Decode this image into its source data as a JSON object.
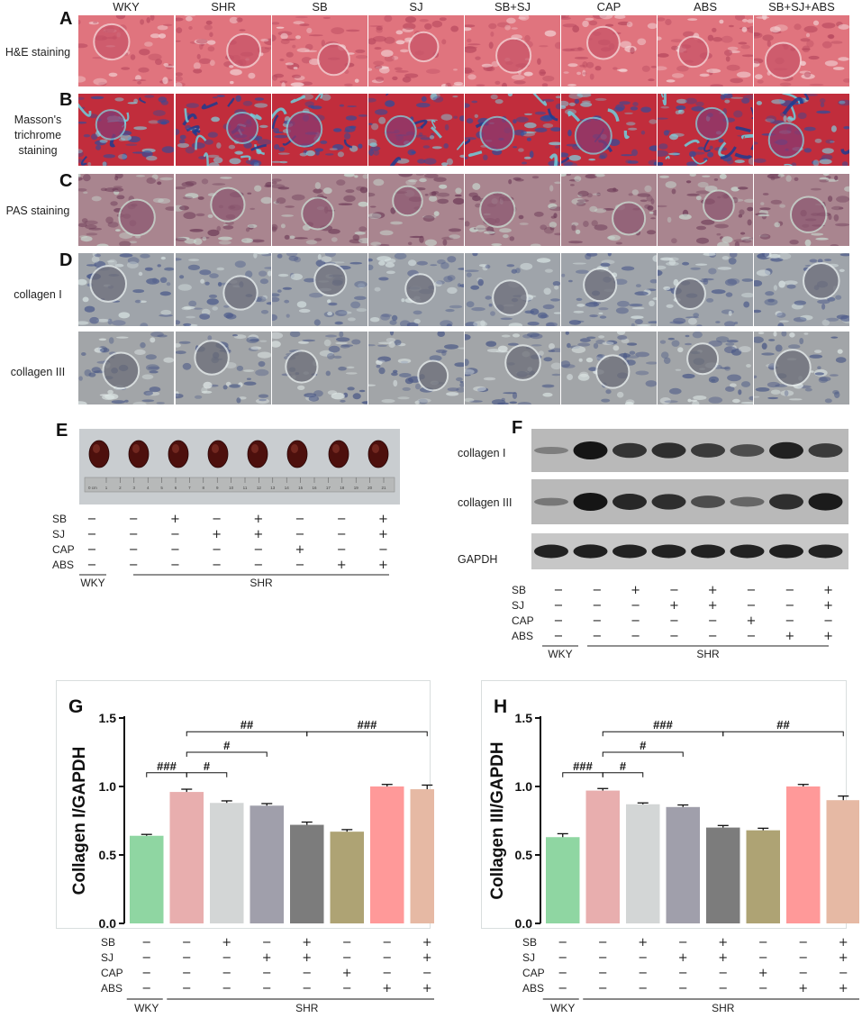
{
  "panel_letters": {
    "A": "A",
    "B": "B",
    "C": "C",
    "D": "D",
    "E": "E",
    "F": "F",
    "G": "G",
    "H": "H"
  },
  "column_headers": [
    "WKY",
    "SHR",
    "SB",
    "SJ",
    "SB+SJ",
    "CAP",
    "ABS",
    "SB+SJ+ABS"
  ],
  "row_labels": {
    "he": "H&E staining",
    "masson": "Masson's trichrome staining",
    "pas": "PAS staining",
    "col1": "collagen I",
    "col3": "collagen III"
  },
  "blot_labels": {
    "col1": "collagen I",
    "col3": "collagen III",
    "gapdh": "GAPDH"
  },
  "ruler_unit": "0 cm",
  "ruler_ticks": [
    "1",
    "2",
    "3",
    "4",
    "5",
    "6",
    "7",
    "8",
    "9",
    "10",
    "11",
    "12",
    "13",
    "14",
    "15",
    "16",
    "17",
    "18",
    "19",
    "20",
    "21"
  ],
  "treatment": {
    "rows": [
      "SB",
      "SJ",
      "CAP",
      "ABS"
    ],
    "matrix": [
      [
        "−",
        "−",
        "+",
        "−",
        "+",
        "−",
        "−",
        "+"
      ],
      [
        "−",
        "−",
        "−",
        "+",
        "+",
        "−",
        "−",
        "+"
      ],
      [
        "−",
        "−",
        "−",
        "−",
        "−",
        "+",
        "−",
        "−"
      ],
      [
        "−",
        "−",
        "−",
        "−",
        "−",
        "−",
        "+",
        "+"
      ]
    ],
    "group_wky": "WKY",
    "group_shr": "SHR"
  },
  "colors": {
    "bars": [
      "#8fd6a2",
      "#e8aeae",
      "#d3d6d6",
      "#a09fab",
      "#7c7c7c",
      "#aea374",
      "#ff9999",
      "#e6b9a4"
    ],
    "he": "#d86a78",
    "masson_red": "#c0263a",
    "masson_blue": "#2a4a9a",
    "pas": "#a8848e",
    "ihc": "#9a9fa6"
  },
  "chart_data": [
    {
      "type": "bar",
      "panel": "G",
      "ylabel": "Collagen I/GAPDH",
      "ylim": [
        0,
        1.5
      ],
      "yticks": [
        "0.0",
        "0.5",
        "1.0",
        "1.5"
      ],
      "groups": [
        "WKY",
        "SHR",
        "SB",
        "SJ",
        "SB+SJ",
        "CAP",
        "ABS",
        "SB+SJ+ABS"
      ],
      "values": [
        0.64,
        0.96,
        0.88,
        0.86,
        0.72,
        0.67,
        1.0,
        0.98
      ],
      "errors": [
        0.01,
        0.02,
        0.015,
        0.015,
        0.02,
        0.015,
        0.015,
        0.03
      ],
      "brackets": [
        {
          "from": 0,
          "to": 1,
          "label": "###"
        },
        {
          "from": 1,
          "to": 2,
          "label": "#"
        },
        {
          "from": 1,
          "to": 3,
          "label": "#"
        },
        {
          "from": 1,
          "to": 4,
          "label": "##"
        },
        {
          "from": 4,
          "to": 7,
          "label": "###"
        }
      ]
    },
    {
      "type": "bar",
      "panel": "H",
      "ylabel": "Collagen III/GAPDH",
      "ylim": [
        0,
        1.5
      ],
      "yticks": [
        "0.0",
        "0.5",
        "1.0",
        "1.5"
      ],
      "groups": [
        "WKY",
        "SHR",
        "SB",
        "SJ",
        "SB+SJ",
        "CAP",
        "ABS",
        "SB+SJ+ABS"
      ],
      "values": [
        0.63,
        0.97,
        0.87,
        0.85,
        0.7,
        0.68,
        1.0,
        0.9
      ],
      "errors": [
        0.025,
        0.015,
        0.01,
        0.015,
        0.015,
        0.015,
        0.015,
        0.03
      ],
      "brackets": [
        {
          "from": 0,
          "to": 1,
          "label": "###"
        },
        {
          "from": 1,
          "to": 2,
          "label": "#"
        },
        {
          "from": 1,
          "to": 3,
          "label": "#"
        },
        {
          "from": 1,
          "to": 4,
          "label": "###"
        },
        {
          "from": 4,
          "to": 7,
          "label": "##"
        }
      ]
    }
  ]
}
